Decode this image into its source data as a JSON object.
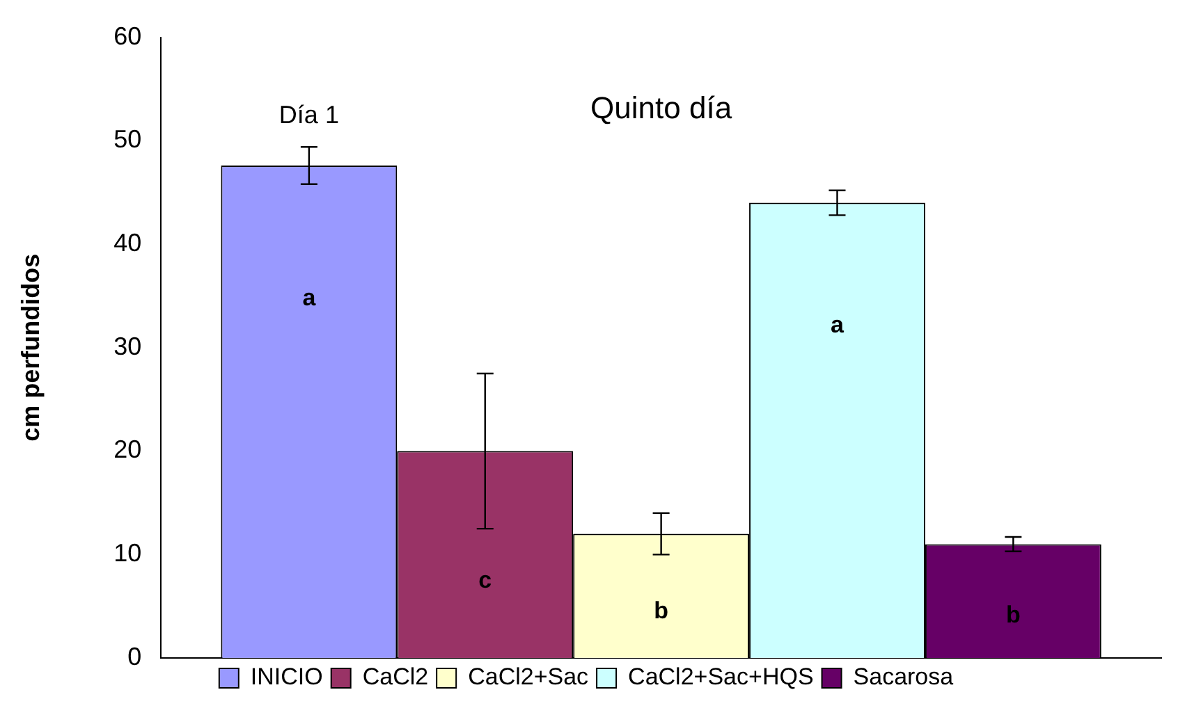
{
  "chart_data": {
    "type": "bar",
    "title": "Quinto día",
    "ylabel": "cm perfundidos",
    "categories": [
      null
    ],
    "series": [
      {
        "name": "INICIO",
        "color": "#9999ff",
        "values": [
          47.6
        ],
        "errors": [
          1.8
        ]
      },
      {
        "name": "CaCl2",
        "color": "#993366",
        "values": [
          20
        ],
        "errors": [
          7.5
        ]
      },
      {
        "name": "CaCl2+Sac",
        "color": "#ffffcc",
        "values": [
          12
        ],
        "errors": [
          2
        ]
      },
      {
        "name": "CaCl2+Sac+HQS",
        "color": "#ccffff",
        "values": [
          44
        ],
        "errors": [
          1.2
        ]
      },
      {
        "name": "Sacarosa",
        "color": "#660066",
        "values": [
          11
        ],
        "errors": [
          0.7
        ]
      }
    ],
    "annotations": [
      "Día 1",
      "a",
      "c",
      "b",
      "a",
      "b"
    ],
    "ylim": [
      0,
      60
    ],
    "yticks": [
      0,
      10,
      20,
      30,
      40,
      50,
      60
    ],
    "grid": false,
    "legend": "bottom"
  }
}
